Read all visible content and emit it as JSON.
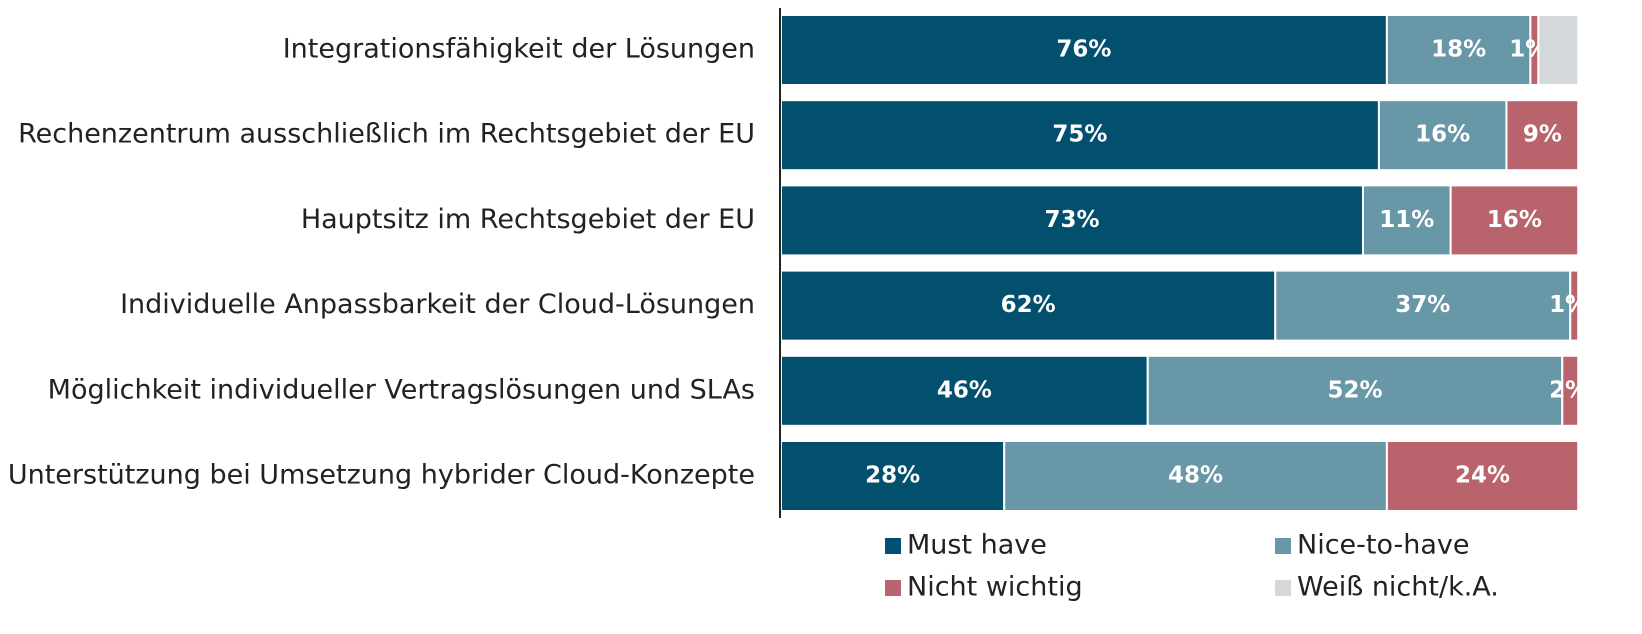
{
  "chart_data": {
    "type": "stacked-bar-horizontal",
    "categories": [
      "Integrationsfähigkeit der Lösungen",
      "Rechenzentrum ausschließlich im Rechtsgebiet der EU",
      "Hauptsitz im Rechtsgebiet der EU",
      "Individuelle Anpassbarkeit der Cloud-Lösungen",
      "Möglichkeit individueller Vertragslösungen und SLAs",
      "Unterstützung bei Umsetzung hybrider Cloud-Konzepte"
    ],
    "series": [
      {
        "name": "Must have",
        "color": "#02506e",
        "values": [
          76,
          75,
          73,
          62,
          46,
          28
        ],
        "value_labels": [
          "76%",
          "75%",
          "73%",
          "62%",
          "46%",
          "28%"
        ]
      },
      {
        "name": "Nice-to-have",
        "color": "#6897a8",
        "values": [
          18,
          16,
          11,
          37,
          52,
          48
        ],
        "value_labels": [
          "18%",
          "16%",
          "11%",
          "37%",
          "52%",
          "48%"
        ]
      },
      {
        "name": "Nicht wichtig",
        "color": "#b9636c",
        "values": [
          1,
          9,
          16,
          1,
          2,
          24
        ],
        "value_labels": [
          "1%",
          "9%",
          "16%",
          "1%",
          "2%",
          "24%"
        ]
      },
      {
        "name": "Weiß nicht/k.A.",
        "color": "#d5d8db",
        "values": [
          5,
          0,
          0,
          0,
          0,
          0
        ]
      }
    ],
    "xlim": [
      0,
      108
    ]
  }
}
